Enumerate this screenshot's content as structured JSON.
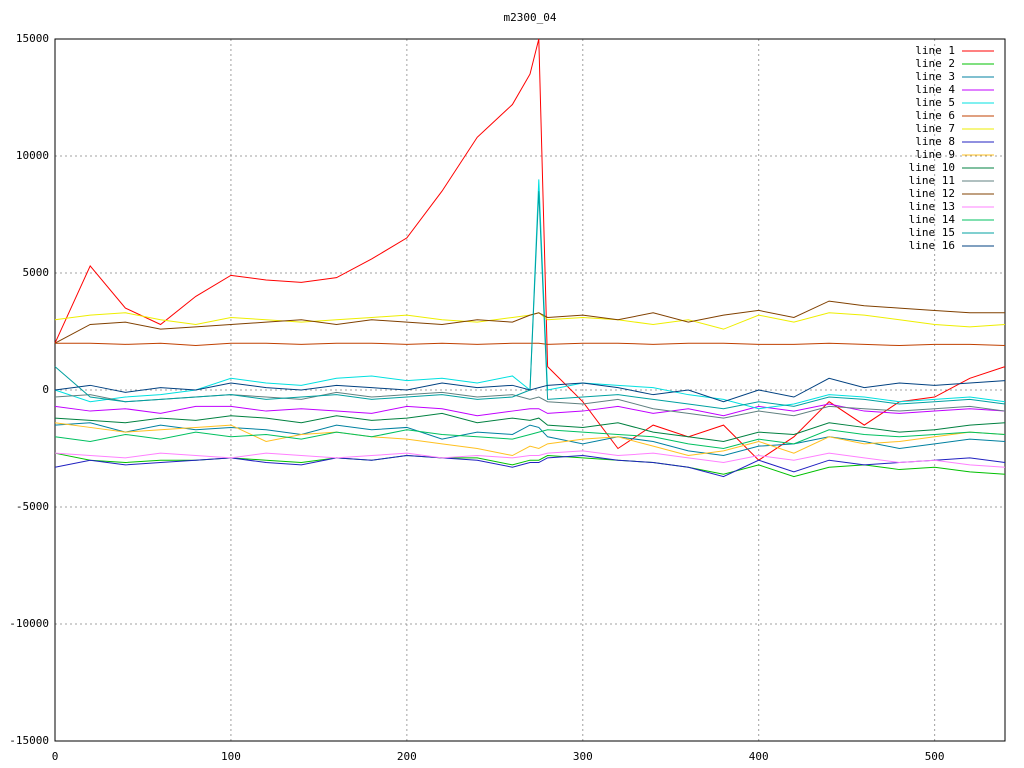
{
  "chart_data": {
    "type": "line",
    "title": "m2300_04",
    "x": [
      0,
      20,
      40,
      60,
      80,
      100,
      120,
      140,
      160,
      180,
      200,
      220,
      240,
      260,
      270,
      275,
      280,
      300,
      320,
      340,
      360,
      380,
      400,
      420,
      440,
      460,
      480,
      500,
      520,
      540
    ],
    "xlim": [
      0,
      540
    ],
    "xticks": [
      0,
      100,
      200,
      300,
      400,
      500
    ],
    "ylim": [
      -15000,
      15000
    ],
    "yticks": [
      -15000,
      -10000,
      -5000,
      0,
      5000,
      10000,
      15000
    ],
    "grid": true,
    "legend": "top-right",
    "series": [
      {
        "name": "line 1",
        "color": "#ff0000",
        "values": [
          2000,
          5300,
          3500,
          2800,
          4000,
          4900,
          4700,
          4600,
          4800,
          5600,
          6500,
          8500,
          10800,
          12200,
          13500,
          15000,
          1000,
          -500,
          -2500,
          -1500,
          -2000,
          -1500,
          -3000,
          -2000,
          -500,
          -1500,
          -500,
          -300,
          500,
          1000
        ]
      },
      {
        "name": "line 2",
        "color": "#00c000",
        "values": [
          -2700,
          -3000,
          -3100,
          -3000,
          -3000,
          -2900,
          -3000,
          -3100,
          -2900,
          -3000,
          -2800,
          -2900,
          -2900,
          -3200,
          -3000,
          -3000,
          -2800,
          -2900,
          -3000,
          -3100,
          -3300,
          -3600,
          -3200,
          -3700,
          -3300,
          -3200,
          -3400,
          -3300,
          -3500,
          -3600
        ]
      },
      {
        "name": "line 3",
        "color": "#0080a0",
        "values": [
          -1500,
          -1400,
          -1800,
          -1500,
          -1700,
          -1600,
          -1700,
          -1900,
          -1500,
          -1700,
          -1600,
          -2100,
          -1800,
          -1900,
          -1500,
          -1600,
          -2000,
          -2300,
          -2000,
          -2200,
          -2600,
          -2800,
          -2400,
          -2300,
          -2000,
          -2200,
          -2500,
          -2300,
          -2100,
          -2200
        ]
      },
      {
        "name": "line 4",
        "color": "#c000ff",
        "values": [
          -700,
          -900,
          -800,
          -1000,
          -700,
          -700,
          -900,
          -800,
          -900,
          -1000,
          -700,
          -800,
          -1100,
          -900,
          -800,
          -800,
          -1000,
          -900,
          -700,
          -1000,
          -800,
          -1100,
          -700,
          -900,
          -600,
          -900,
          -1000,
          -900,
          -800,
          -900
        ]
      },
      {
        "name": "line 5",
        "color": "#00e0e0",
        "values": [
          0,
          -500,
          -300,
          -200,
          0,
          500,
          300,
          200,
          500,
          600,
          400,
          500,
          300,
          600,
          0,
          9000,
          0,
          300,
          200,
          100,
          -200,
          -400,
          -800,
          -600,
          -200,
          -300,
          -500,
          -400,
          -300,
          -500
        ]
      },
      {
        "name": "line 6",
        "color": "#c04000",
        "values": [
          2000,
          2000,
          1950,
          2000,
          1900,
          2000,
          2000,
          1950,
          2000,
          2000,
          1950,
          2000,
          1950,
          2000,
          2000,
          2000,
          1950,
          2000,
          2000,
          1950,
          2000,
          2000,
          1950,
          1950,
          2000,
          1950,
          1900,
          1950,
          1950,
          1900
        ]
      },
      {
        "name": "line 7",
        "color": "#eeee00",
        "values": [
          3000,
          3200,
          3300,
          3000,
          2800,
          3100,
          3000,
          2900,
          3000,
          3100,
          3200,
          3000,
          2900,
          3100,
          3200,
          3300,
          3000,
          3100,
          3000,
          2800,
          3000,
          2600,
          3200,
          2900,
          3300,
          3200,
          3000,
          2800,
          2700,
          2800
        ]
      },
      {
        "name": "line 8",
        "color": "#2020c0",
        "values": [
          -3300,
          -3000,
          -3200,
          -3100,
          -3000,
          -2900,
          -3100,
          -3200,
          -2900,
          -3000,
          -2800,
          -2900,
          -3000,
          -3300,
          -3100,
          -3100,
          -2900,
          -2800,
          -3000,
          -3100,
          -3300,
          -3700,
          -3000,
          -3500,
          -3000,
          -3200,
          -3100,
          -3000,
          -2900,
          -3100
        ]
      },
      {
        "name": "line 9",
        "color": "#ffc020",
        "values": [
          -1400,
          -1600,
          -1800,
          -1700,
          -1600,
          -1500,
          -2200,
          -1900,
          -1800,
          -2000,
          -2100,
          -2300,
          -2500,
          -2800,
          -2400,
          -2500,
          -2300,
          -2100,
          -2000,
          -2400,
          -2800,
          -2600,
          -2200,
          -2700,
          -2000,
          -2300,
          -2200,
          -2000,
          -1800,
          -1900
        ]
      },
      {
        "name": "line 10",
        "color": "#008040",
        "values": [
          -1200,
          -1300,
          -1400,
          -1200,
          -1300,
          -1100,
          -1200,
          -1400,
          -1100,
          -1300,
          -1200,
          -1000,
          -1400,
          -1200,
          -1300,
          -1200,
          -1500,
          -1600,
          -1400,
          -1800,
          -2000,
          -2200,
          -1800,
          -1900,
          -1400,
          -1600,
          -1800,
          -1700,
          -1500,
          -1400
        ]
      },
      {
        "name": "line 11",
        "color": "#608080",
        "values": [
          -300,
          -200,
          -500,
          -400,
          -300,
          -200,
          -300,
          -400,
          -100,
          -300,
          -200,
          -100,
          -300,
          -200,
          -400,
          -300,
          -500,
          -600,
          -400,
          -800,
          -1000,
          -1200,
          -900,
          -1100,
          -700,
          -800,
          -900,
          -800,
          -700,
          -900
        ]
      },
      {
        "name": "line 12",
        "color": "#804000",
        "values": [
          2000,
          2800,
          2900,
          2600,
          2700,
          2800,
          2900,
          3000,
          2800,
          3000,
          2900,
          2800,
          3000,
          2900,
          3200,
          3300,
          3100,
          3200,
          3000,
          3300,
          2900,
          3200,
          3400,
          3100,
          3800,
          3600,
          3500,
          3400,
          3300,
          3300
        ]
      },
      {
        "name": "line 13",
        "color": "#ff80ff",
        "values": [
          -2700,
          -2800,
          -2900,
          -2700,
          -2800,
          -2900,
          -2700,
          -2800,
          -2900,
          -2800,
          -2700,
          -2900,
          -2800,
          -2900,
          -2800,
          -2800,
          -2700,
          -2600,
          -2800,
          -2700,
          -2900,
          -3100,
          -2800,
          -3000,
          -2700,
          -2900,
          -3100,
          -3000,
          -3200,
          -3300
        ]
      },
      {
        "name": "line 14",
        "color": "#00c060",
        "values": [
          -2000,
          -2200,
          -1900,
          -2100,
          -1800,
          -2000,
          -1900,
          -2100,
          -1800,
          -2000,
          -1700,
          -1900,
          -2000,
          -2100,
          -1900,
          -1800,
          -1700,
          -1800,
          -1900,
          -2000,
          -2300,
          -2500,
          -2100,
          -2300,
          -1700,
          -1900,
          -2000,
          -1900,
          -1800,
          -1900
        ]
      },
      {
        "name": "line 15",
        "color": "#00a0a0",
        "values": [
          1000,
          -300,
          -500,
          -400,
          -300,
          -200,
          -400,
          -300,
          -200,
          -400,
          -300,
          -200,
          -400,
          -300,
          0,
          8500,
          -400,
          -300,
          -200,
          -400,
          -600,
          -800,
          -500,
          -700,
          -300,
          -400,
          -600,
          -500,
          -400,
          -600
        ]
      },
      {
        "name": "line 16",
        "color": "#004080",
        "values": [
          0,
          200,
          -100,
          100,
          0,
          300,
          100,
          0,
          200,
          100,
          0,
          300,
          100,
          200,
          0,
          100,
          200,
          300,
          100,
          -200,
          0,
          -500,
          0,
          -300,
          500,
          100,
          300,
          200,
          300,
          400
        ]
      }
    ]
  }
}
